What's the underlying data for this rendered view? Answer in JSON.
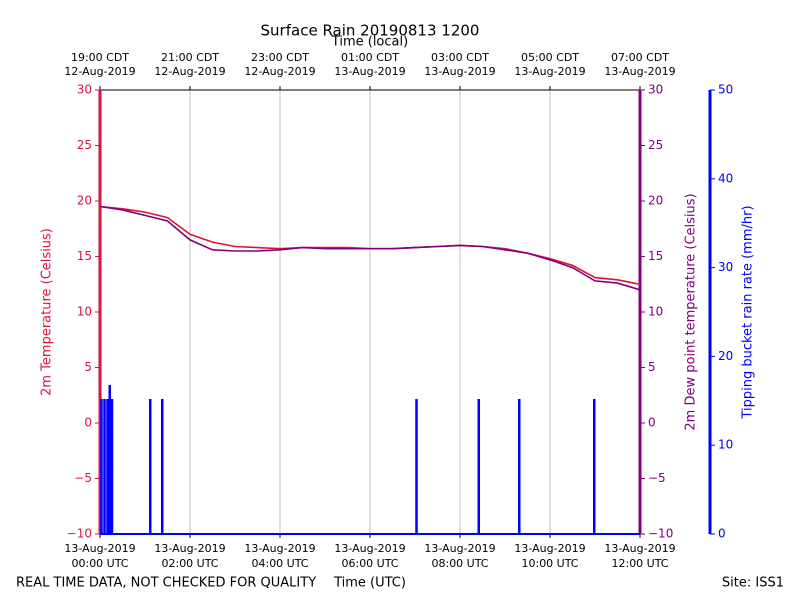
{
  "chart_data": {
    "type": "line",
    "title": "Surface Rain 20190813 1200",
    "top_xlabel": "Time (local)",
    "xlabel": "Time (UTC)",
    "ylabel": "2m Temperature (Celsius)",
    "y2label": "2m Dew point temperature (Celsius)",
    "y3label": "Tipping bucket rain rate (mm/hr)",
    "footer_left": "REAL TIME DATA, NOT CHECKED FOR QUALITY",
    "footer_right": "Site: ISS1",
    "grid": true,
    "xlim": [
      "2019-08-13T00:00",
      "2019-08-13T12:00"
    ],
    "xticks": [
      {
        "value": "2019-08-13T00:00",
        "label": [
          "13-Aug-2019",
          "00:00 UTC"
        ]
      },
      {
        "value": "2019-08-13T02:00",
        "label": [
          "13-Aug-2019",
          "02:00 UTC"
        ]
      },
      {
        "value": "2019-08-13T04:00",
        "label": [
          "13-Aug-2019",
          "04:00 UTC"
        ]
      },
      {
        "value": "2019-08-13T06:00",
        "label": [
          "13-Aug-2019",
          "06:00 UTC"
        ]
      },
      {
        "value": "2019-08-13T08:00",
        "label": [
          "13-Aug-2019",
          "08:00 UTC"
        ]
      },
      {
        "value": "2019-08-13T10:00",
        "label": [
          "13-Aug-2019",
          "10:00 UTC"
        ]
      },
      {
        "value": "2019-08-13T12:00",
        "label": [
          "13-Aug-2019",
          "12:00 UTC"
        ]
      }
    ],
    "top_xticks": [
      {
        "value": "2019-08-13T00:00",
        "label": [
          "19:00 CDT",
          "12-Aug-2019"
        ]
      },
      {
        "value": "2019-08-13T02:00",
        "label": [
          "21:00 CDT",
          "12-Aug-2019"
        ]
      },
      {
        "value": "2019-08-13T04:00",
        "label": [
          "23:00 CDT",
          "12-Aug-2019"
        ]
      },
      {
        "value": "2019-08-13T06:00",
        "label": [
          "01:00 CDT",
          "13-Aug-2019"
        ]
      },
      {
        "value": "2019-08-13T08:00",
        "label": [
          "03:00 CDT",
          "13-Aug-2019"
        ]
      },
      {
        "value": "2019-08-13T10:00",
        "label": [
          "05:00 CDT",
          "13-Aug-2019"
        ]
      },
      {
        "value": "2019-08-13T12:00",
        "label": [
          "07:00 CDT",
          "13-Aug-2019"
        ]
      }
    ],
    "ylim": [
      -10,
      30
    ],
    "yticks": [
      {
        "value": -10,
        "label": "−10"
      },
      {
        "value": -5,
        "label": "−5"
      },
      0,
      5,
      10,
      15,
      20,
      25,
      30
    ],
    "y2lim": [
      -10,
      30
    ],
    "y2ticks": [
      {
        "value": -10,
        "label": "−10"
      },
      {
        "value": -5,
        "label": "−5"
      },
      0,
      5,
      10,
      15,
      20,
      25,
      30
    ],
    "y3lim": [
      0,
      50
    ],
    "y3ticks": [
      0,
      10,
      20,
      30,
      40,
      50
    ],
    "ycolor": "#dc143c",
    "y2color": "#800080",
    "y3color": "#0000ff",
    "x": [
      "2019-08-13T00:00",
      "2019-08-13T00:30",
      "2019-08-13T01:00",
      "2019-08-13T01:30",
      "2019-08-13T02:00",
      "2019-08-13T02:30",
      "2019-08-13T03:00",
      "2019-08-13T03:30",
      "2019-08-13T04:00",
      "2019-08-13T04:30",
      "2019-08-13T05:00",
      "2019-08-13T05:30",
      "2019-08-13T06:00",
      "2019-08-13T06:30",
      "2019-08-13T07:00",
      "2019-08-13T07:30",
      "2019-08-13T08:00",
      "2019-08-13T08:30",
      "2019-08-13T09:00",
      "2019-08-13T09:30",
      "2019-08-13T10:00",
      "2019-08-13T10:30",
      "2019-08-13T11:00",
      "2019-08-13T11:30",
      "2019-08-13T12:00"
    ],
    "series": [
      {
        "color": "#dc143c",
        "axis": "y",
        "values": [
          19.5,
          19.3,
          19.0,
          18.5,
          17.0,
          16.3,
          15.9,
          15.8,
          15.7,
          15.8,
          15.8,
          15.8,
          15.7,
          15.7,
          15.8,
          15.9,
          16.0,
          15.9,
          15.7,
          15.3,
          14.8,
          14.2,
          13.1,
          12.9,
          12.5
        ]
      },
      {
        "color": "#800080",
        "axis": "y2",
        "values": [
          19.5,
          19.2,
          18.7,
          18.2,
          16.5,
          15.6,
          15.5,
          15.5,
          15.6,
          15.8,
          15.7,
          15.7,
          15.7,
          15.7,
          15.8,
          15.9,
          16.0,
          15.9,
          15.6,
          15.3,
          14.7,
          14.0,
          12.8,
          12.6,
          12.0
        ]
      }
    ],
    "rain": {
      "color": "#0000ff",
      "axis": "y3",
      "x": [
        "2019-08-13T00:02",
        "2019-08-13T00:06",
        "2019-08-13T00:10",
        "2019-08-13T00:13",
        "2019-08-13T00:16",
        "2019-08-13T01:07",
        "2019-08-13T01:23",
        "2019-08-13T07:02",
        "2019-08-13T08:25",
        "2019-08-13T09:19",
        "2019-08-13T10:59"
      ],
      "values": [
        15.2,
        15.2,
        15.2,
        16.8,
        15.2,
        15.2,
        15.2,
        15.2,
        15.2,
        15.2,
        15.2
      ]
    }
  }
}
